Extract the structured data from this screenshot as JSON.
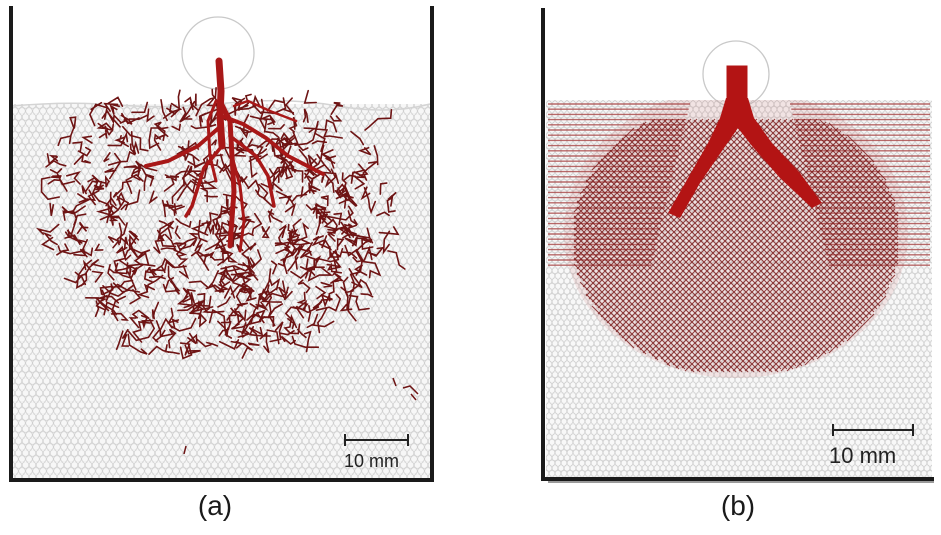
{
  "figure": {
    "panels": [
      {
        "id": "a",
        "caption": "(a)",
        "scale_bar_label": "10 mm"
      },
      {
        "id": "b",
        "caption": "(b)",
        "scale_bar_label": "10 mm"
      }
    ],
    "colors": {
      "crack_dark": "#6e1414",
      "crack_bright": "#b01818",
      "particle_fill": "#f4f4f4",
      "particle_stroke": "#c8c8c8",
      "container": "#1a1a1a"
    }
  }
}
